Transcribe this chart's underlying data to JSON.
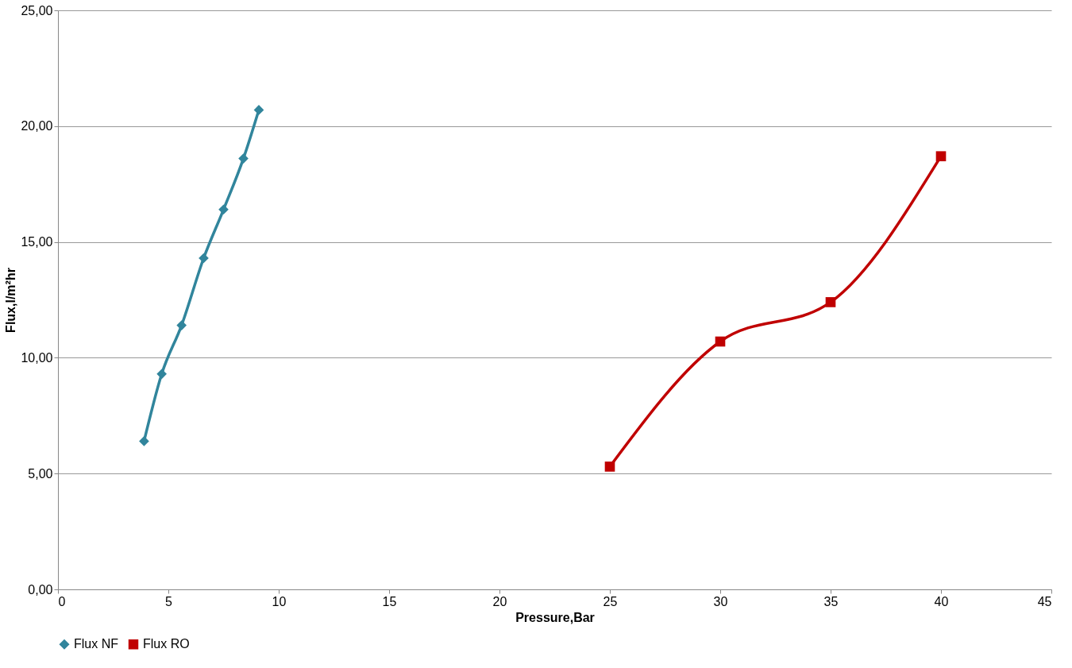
{
  "chart_data": {
    "type": "line",
    "xlabel": "Pressure,Bar",
    "ylabel": "Flux,l/m²hr",
    "xlim": [
      0,
      45
    ],
    "xticks": [
      0,
      5,
      10,
      15,
      20,
      25,
      30,
      35,
      40,
      45
    ],
    "ylim": [
      0,
      25
    ],
    "yticks": [
      {
        "value": 0,
        "label": "0,00"
      },
      {
        "value": 5,
        "label": "5,00"
      },
      {
        "value": 10,
        "label": "10,00"
      },
      {
        "value": 15,
        "label": "15,00"
      },
      {
        "value": 20,
        "label": "20,00"
      },
      {
        "value": 25,
        "label": "25,00"
      }
    ],
    "grid": "y",
    "legend": "bottom left",
    "line_style": "solid",
    "series": [
      {
        "name": "Flux NF",
        "color": "#31859c",
        "marker": "diamond",
        "x": [
          3.9,
          4.7,
          5.6,
          6.6,
          7.5,
          8.4,
          9.1
        ],
        "values": [
          6.4,
          9.3,
          11.4,
          14.3,
          16.4,
          18.6,
          20.7
        ]
      },
      {
        "name": "Flux RO",
        "color": "#c00000",
        "marker": "square",
        "x": [
          25,
          30,
          35,
          40
        ],
        "values": [
          5.3,
          10.7,
          12.4,
          18.7
        ]
      }
    ]
  }
}
